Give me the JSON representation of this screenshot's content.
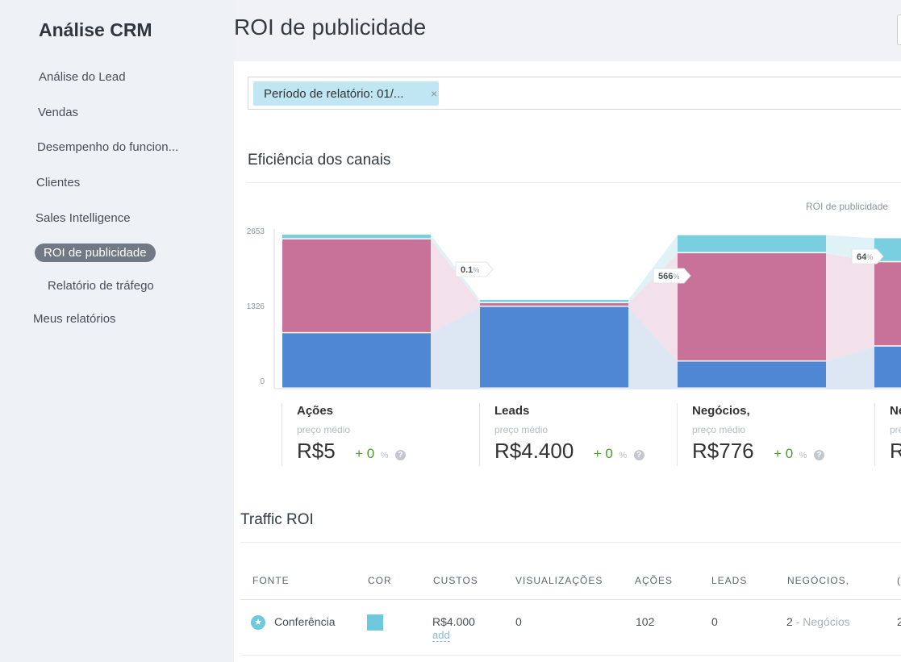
{
  "sidebar": {
    "title": "Análise CRM",
    "items": [
      {
        "label": "Análise do Lead"
      },
      {
        "label": "Vendas"
      },
      {
        "label": "Desempenho do funcion..."
      },
      {
        "label": "Clientes"
      },
      {
        "label": "Sales Intelligence"
      },
      {
        "label": "ROI de publicidade"
      },
      {
        "label": "Relatório de tráfego"
      },
      {
        "label": "Meus relatórios"
      }
    ]
  },
  "header": {
    "title": "ROI de publicidade"
  },
  "filter": {
    "chip_label": "Período de relatório: 01/...",
    "chip_close": "×"
  },
  "efficiency": {
    "title": "Eficiência dos canais",
    "legend_label": "ROI de publicidade"
  },
  "chart_data": {
    "type": "bar",
    "stacked": true,
    "y_ticks": [
      "2653",
      "1326",
      "0"
    ],
    "ylim": [
      0,
      2653
    ],
    "categories": [
      "Ações",
      "Leads",
      "Negócios,",
      "Ne"
    ],
    "series": [
      {
        "color": "#4f87d3",
        "values": [
          920,
          1360,
          450,
          700
        ]
      },
      {
        "color": "#c97299",
        "values": [
          1560,
          60,
          1800,
          1400
        ]
      },
      {
        "color": "#79cfdf",
        "values": [
          80,
          55,
          300,
          400
        ]
      }
    ],
    "conversion_labels": [
      "0.1%",
      "566%",
      "64%"
    ],
    "colors": {
      "blue": "#4f87d3",
      "pink": "#c97299",
      "cyan": "#79cfdf"
    }
  },
  "stats": [
    {
      "name": "Ações",
      "sub": "preço médio",
      "value": "R$5",
      "delta": "+ 0",
      "pct": "%"
    },
    {
      "name": "Leads",
      "sub": "preço médio",
      "value": "R$4.400",
      "delta": "+ 0",
      "pct": "%"
    },
    {
      "name": "Negócios,",
      "sub": "preço médio",
      "value": "R$776",
      "delta": "+ 0",
      "pct": "%"
    },
    {
      "name": "Ne",
      "sub": "pre",
      "value": "R"
    }
  ],
  "traffic": {
    "title": "Traffic ROI",
    "columns": [
      "FONTE",
      "COR",
      "CUSTOS",
      "VISUALIZAÇÕES",
      "AÇÕES",
      "LEADS",
      "NEGÓCIOS,",
      "("
    ],
    "rows": [
      {
        "fonte": "Conferência",
        "custos": "R$4.000",
        "add": "add",
        "visualizacoes": "0",
        "acoes": "102",
        "leads": "0",
        "negocios_num": "2",
        "negocios_text": " - Negócios",
        "extra": "2"
      }
    ]
  }
}
